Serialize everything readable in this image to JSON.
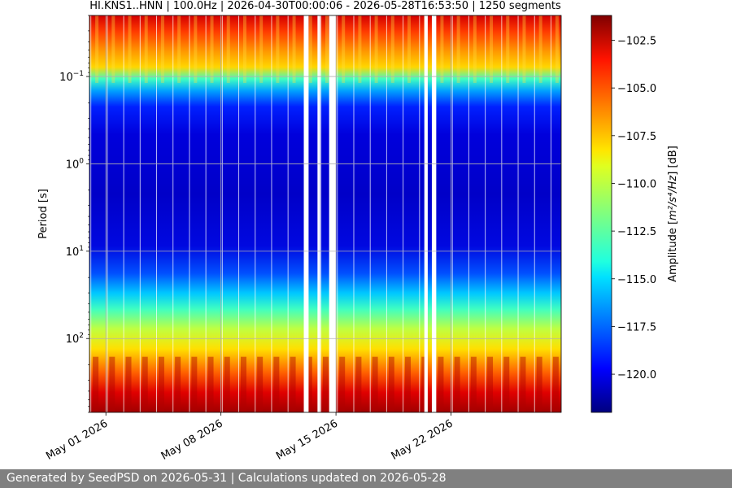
{
  "chart_data": {
    "type": "heatmap",
    "title": "HI.KNS1..HNN | 100.0Hz | 2026-04-30T00:00:06 - 2026-05-28T16:53:50 | 1250 segments",
    "xlabel": "",
    "ylabel": "Period [s]",
    "x_scale": "time",
    "x_range": [
      "2026-04-30T00:00:06",
      "2026-05-28T16:53:50"
    ],
    "x_ticks": [
      {
        "date": "2026-05-01",
        "label": "May 01 2026"
      },
      {
        "date": "2026-05-08",
        "label": "May 08 2026"
      },
      {
        "date": "2026-05-15",
        "label": "May 15 2026"
      },
      {
        "date": "2026-05-22",
        "label": "May 22 2026"
      }
    ],
    "y_scale": "log",
    "y_inverted": true,
    "y_range": [
      0.02,
      700
    ],
    "y_ticks": [
      {
        "value": 0.1,
        "base": "10",
        "exp": "−1"
      },
      {
        "value": 1,
        "base": "10",
        "exp": "0"
      },
      {
        "value": 10,
        "base": "10",
        "exp": "1"
      },
      {
        "value": 100,
        "base": "10",
        "exp": "2"
      }
    ],
    "grid": true,
    "colormap": "jet",
    "colorbar": {
      "label_prefix": "Amplitude [",
      "label_units": "m²/s⁴/Hz",
      "label_suffix": "] [dB]",
      "range": [
        -122.0,
        -101.2
      ],
      "ticks": [
        {
          "value": -102.5,
          "label": "−102.5"
        },
        {
          "value": -105.0,
          "label": "−105.0"
        },
        {
          "value": -107.5,
          "label": "−107.5"
        },
        {
          "value": -110.0,
          "label": "−110.0"
        },
        {
          "value": -112.5,
          "label": "−112.5"
        },
        {
          "value": -115.0,
          "label": "−115.0"
        },
        {
          "value": -117.5,
          "label": "−117.5"
        },
        {
          "value": -120.0,
          "label": "−120.0"
        }
      ]
    },
    "data_gaps": [
      [
        "2026-05-13T01:00:00",
        "2026-05-13T08:00:00"
      ],
      [
        "2026-05-13T21:00:00",
        "2026-05-14T01:00:00"
      ],
      [
        "2026-05-14T14:00:00",
        "2026-05-15T00:00:00"
      ],
      [
        "2026-05-20T09:00:00",
        "2026-05-20T14:00:00"
      ],
      [
        "2026-05-20T20:00:00",
        "2026-05-21T02:00:00"
      ]
    ],
    "features": {
      "high_period_band": "daily cycle of high amplitude (about -108 to -102 dB) at periods below 0.1 s",
      "quiet_band": "minimum amplitude (about -121 dB) at periods 0.2 s to 20 s",
      "long_period_band": "high amplitude (about -112 to -101 dB) at periods above 50 s"
    }
  },
  "footer": {
    "text": "Generated by SeedPSD on 2026-05-31 | Calculations updated on 2026-05-28",
    "background": "#808080"
  }
}
